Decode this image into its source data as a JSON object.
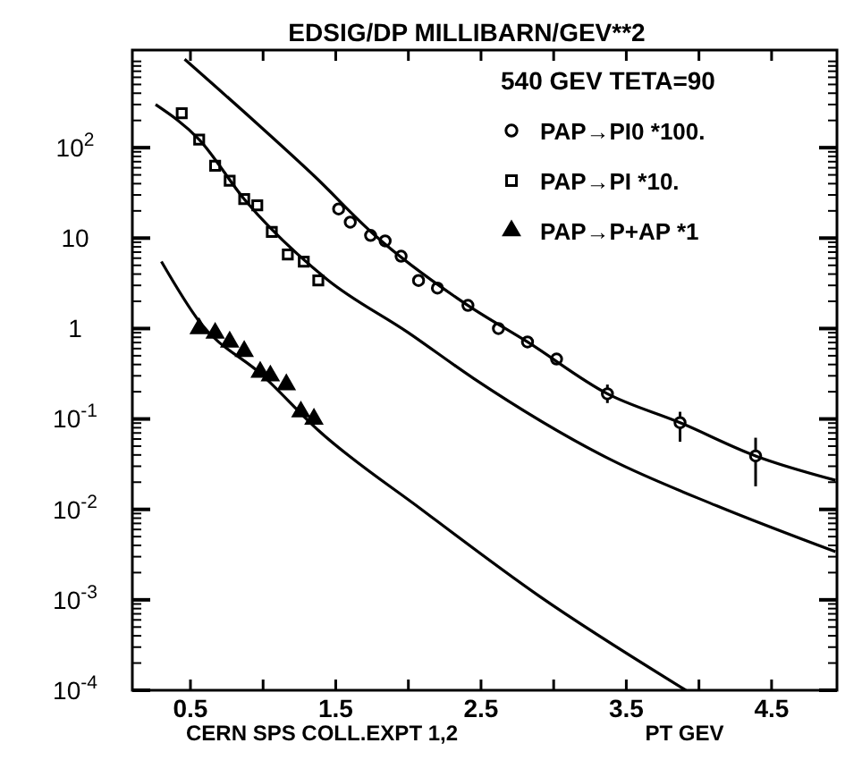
{
  "chart_data": {
    "type": "scatter",
    "title": "EDSIG/DP MILLIBARN/GEV**2",
    "xlabel": "PT GEV",
    "annotations": [
      "CERN SPS COLL.EXPT 1,2"
    ],
    "legend_title": "540 GEV TETA=90",
    "legend": "top right",
    "log": "y",
    "xlim": [
      0.1,
      4.95
    ],
    "ylim": [
      0.0001,
      1200
    ],
    "xticks": [
      0.5,
      {
        "value": 1,
        "label": null
      },
      1.5,
      {
        "value": 2,
        "label": null
      },
      2.5,
      {
        "value": 3,
        "label": null
      },
      3.5,
      {
        "value": 4,
        "label": null
      },
      4.5
    ],
    "yticks": [
      {
        "value": 0.0001,
        "label": "10$^{-4}$"
      },
      {
        "value": 0.001,
        "label": "10$^{-3}$"
      },
      {
        "value": 0.01,
        "label": "10$^{-2}$"
      },
      {
        "value": 0.1,
        "label": "10$^{-1}$"
      },
      1,
      10,
      {
        "value": 100,
        "label": "10$^{2}$"
      }
    ],
    "series": [
      {
        "name": "PAP→PI0 *100.",
        "marker": "circle",
        "color": "#000000",
        "x": [
          1.52,
          1.6,
          1.74,
          1.84,
          1.95,
          2.07,
          2.2,
          2.41,
          2.62,
          2.82,
          3.02,
          3.37,
          3.87,
          4.39
        ],
        "values": [
          21,
          15,
          10.7,
          9.3,
          6.3,
          3.4,
          2.8,
          1.8,
          1.0,
          0.71,
          0.46,
          0.19,
          0.091,
          0.039
        ],
        "errors": [
          null,
          null,
          null,
          null,
          null,
          null,
          null,
          null,
          null,
          null,
          null,
          [
            0.15,
            0.24
          ],
          [
            0.056,
            0.12
          ],
          [
            0.018,
            0.062
          ]
        ]
      },
      {
        "name": "PAP→PI *10.",
        "marker": "square",
        "color": "#000000",
        "x": [
          0.44,
          0.56,
          0.67,
          0.77,
          0.87,
          0.96,
          1.06,
          1.17,
          1.28,
          1.38
        ],
        "values": [
          240,
          123,
          63,
          43,
          27,
          23,
          11.7,
          6.6,
          5.5,
          3.4
        ]
      },
      {
        "name": "PAP→P+AP *1",
        "marker": "triangle",
        "color": "#000000",
        "x": [
          0.56,
          0.67,
          0.77,
          0.87,
          0.98,
          1.05,
          1.16,
          1.26,
          1.35
        ],
        "values": [
          1.0,
          0.89,
          0.71,
          0.56,
          0.33,
          0.3,
          0.24,
          0.12,
          0.1
        ]
      },
      {
        "type": "line",
        "marker": "none",
        "line_style": "solid",
        "color": "#000000",
        "x": [
          0.46,
          0.95,
          1.35,
          1.77,
          2.41,
          2.82,
          3.37,
          3.87,
          4.39,
          4.94
        ],
        "values": [
          950,
          190,
          49,
          10.7,
          1.8,
          0.71,
          0.19,
          0.091,
          0.039,
          0.021
        ]
      },
      {
        "type": "line",
        "marker": "none",
        "line_style": "solid",
        "color": "#000000",
        "x": [
          0.26,
          0.56,
          0.87,
          1.44,
          2.0,
          2.45,
          3.4,
          4.12,
          4.94
        ],
        "values": [
          300,
          123,
          27,
          3.5,
          0.9,
          0.28,
          0.035,
          0.011,
          0.0034
        ]
      },
      {
        "type": "line",
        "marker": "none",
        "line_style": "solid",
        "color": "#000000",
        "x": [
          0.3,
          0.56,
          1.0,
          1.38,
          2.09,
          2.9,
          3.91
        ],
        "values": [
          5.5,
          1.2,
          0.3,
          0.075,
          0.01,
          0.0011,
          0.0001
        ]
      }
    ]
  }
}
